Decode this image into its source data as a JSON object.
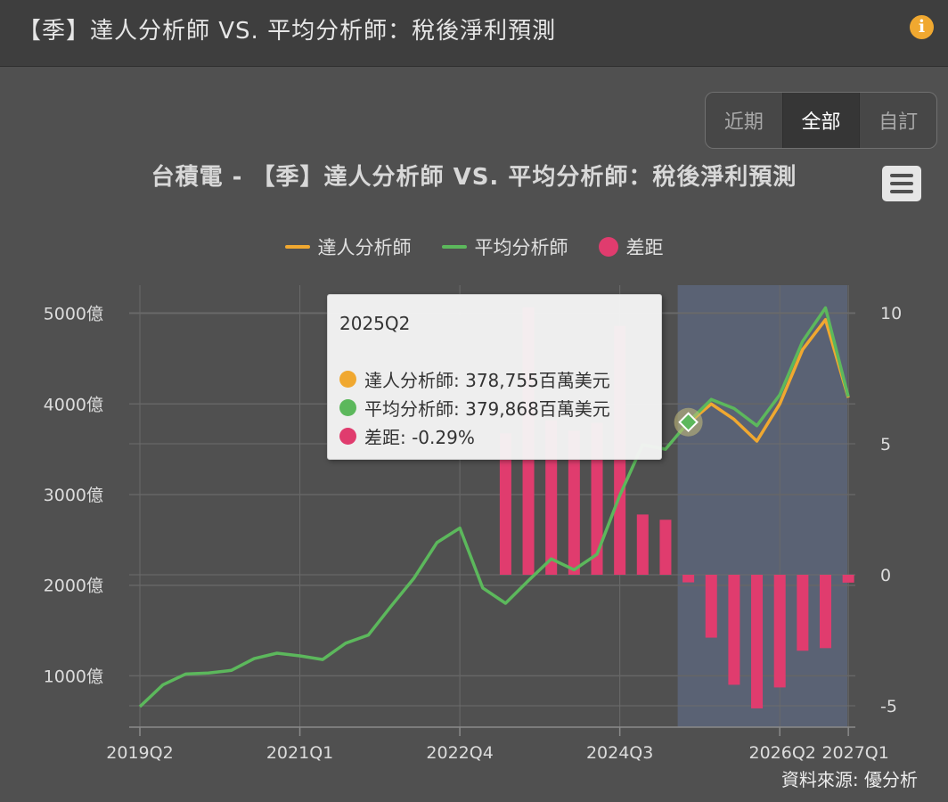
{
  "header": {
    "title": "【季】達人分析師 VS. 平均分析師：稅後淨利預測",
    "info_icon": "info-icon"
  },
  "range_buttons": [
    {
      "label": "近期",
      "active": false
    },
    {
      "label": "全部",
      "active": true
    },
    {
      "label": "自訂",
      "active": false
    }
  ],
  "menu_icon": "hamburger-menu-icon",
  "colors": {
    "expert": "#f0a830",
    "average": "#5cb85c",
    "gap": "#e03c6e",
    "forecast_band": "#5b6478"
  },
  "chart_data": {
    "type": "line",
    "title": "台積電 - 【季】達人分析師 VS. 平均分析師：稅後淨利預測",
    "x_tick_labels": [
      "2019Q2",
      "2021Q1",
      "2022Q4",
      "2024Q3",
      "2026Q2",
      "2027Q1"
    ],
    "y_left": {
      "ticks": [
        1000,
        2000,
        3000,
        4000,
        5000
      ],
      "tick_labels": [
        "1000億",
        "2000億",
        "3000億",
        "4000億",
        "5000億"
      ]
    },
    "y_right": {
      "ticks": [
        -5,
        0,
        5,
        10
      ],
      "tick_labels": [
        "-5",
        "0",
        "5",
        "10"
      ]
    },
    "x": [
      "2019Q2",
      "2019Q3",
      "2019Q4",
      "2020Q1",
      "2020Q2",
      "2020Q3",
      "2020Q4",
      "2021Q1",
      "2021Q2",
      "2021Q3",
      "2021Q4",
      "2022Q1",
      "2022Q2",
      "2022Q3",
      "2022Q4",
      "2023Q1",
      "2023Q2",
      "2023Q3",
      "2023Q4",
      "2024Q1",
      "2024Q2",
      "2024Q3",
      "2024Q4",
      "2025Q1",
      "2025Q2",
      "2025Q3",
      "2025Q4",
      "2026Q1",
      "2026Q2",
      "2026Q3",
      "2026Q4",
      "2027Q1"
    ],
    "forecast_start": "2025Q2",
    "series": [
      {
        "name": "達人分析師",
        "type": "line",
        "axis": "left",
        "color": "#f0a830",
        "values": [
          null,
          null,
          null,
          null,
          null,
          null,
          null,
          null,
          null,
          null,
          null,
          null,
          null,
          null,
          null,
          null,
          null,
          null,
          null,
          null,
          null,
          null,
          null,
          null,
          3788,
          4000,
          3830,
          3590,
          4000,
          4600,
          4930,
          4070
        ]
      },
      {
        "name": "平均分析師",
        "type": "line",
        "axis": "left",
        "color": "#5cb85c",
        "values": [
          660,
          900,
          1020,
          1030,
          1060,
          1190,
          1250,
          1220,
          1180,
          1360,
          1450,
          1770,
          2080,
          2470,
          2630,
          1970,
          1800,
          2050,
          2290,
          2170,
          2340,
          2990,
          3550,
          3500,
          3799,
          4050,
          3950,
          3760,
          4100,
          4690,
          5060,
          4080
        ]
      },
      {
        "name": "差距",
        "type": "column",
        "axis": "right",
        "color": "#e03c6e",
        "values": [
          null,
          null,
          null,
          null,
          null,
          null,
          null,
          null,
          null,
          null,
          null,
          null,
          null,
          null,
          null,
          null,
          5.4,
          10.2,
          5.9,
          5.5,
          5.8,
          9.5,
          2.3,
          2.1,
          -0.29,
          -2.4,
          -4.2,
          -5.1,
          -4.3,
          -2.9,
          -2.8,
          -0.3
        ]
      }
    ]
  },
  "legend": [
    {
      "label": "達人分析師",
      "kind": "line",
      "color": "#f0a830"
    },
    {
      "label": "平均分析師",
      "kind": "line",
      "color": "#5cb85c"
    },
    {
      "label": "差距",
      "kind": "dot",
      "color": "#e03c6e"
    }
  ],
  "tooltip": {
    "header": "2025Q2",
    "rows": [
      {
        "text": "達人分析師: 378,755百萬美元",
        "color": "#f0a830"
      },
      {
        "text": "平均分析師: 379,868百萬美元",
        "color": "#5cb85c"
      },
      {
        "text": "差距: -0.29%",
        "color": "#e03c6e"
      }
    ]
  },
  "source": "資料來源: 優分析"
}
